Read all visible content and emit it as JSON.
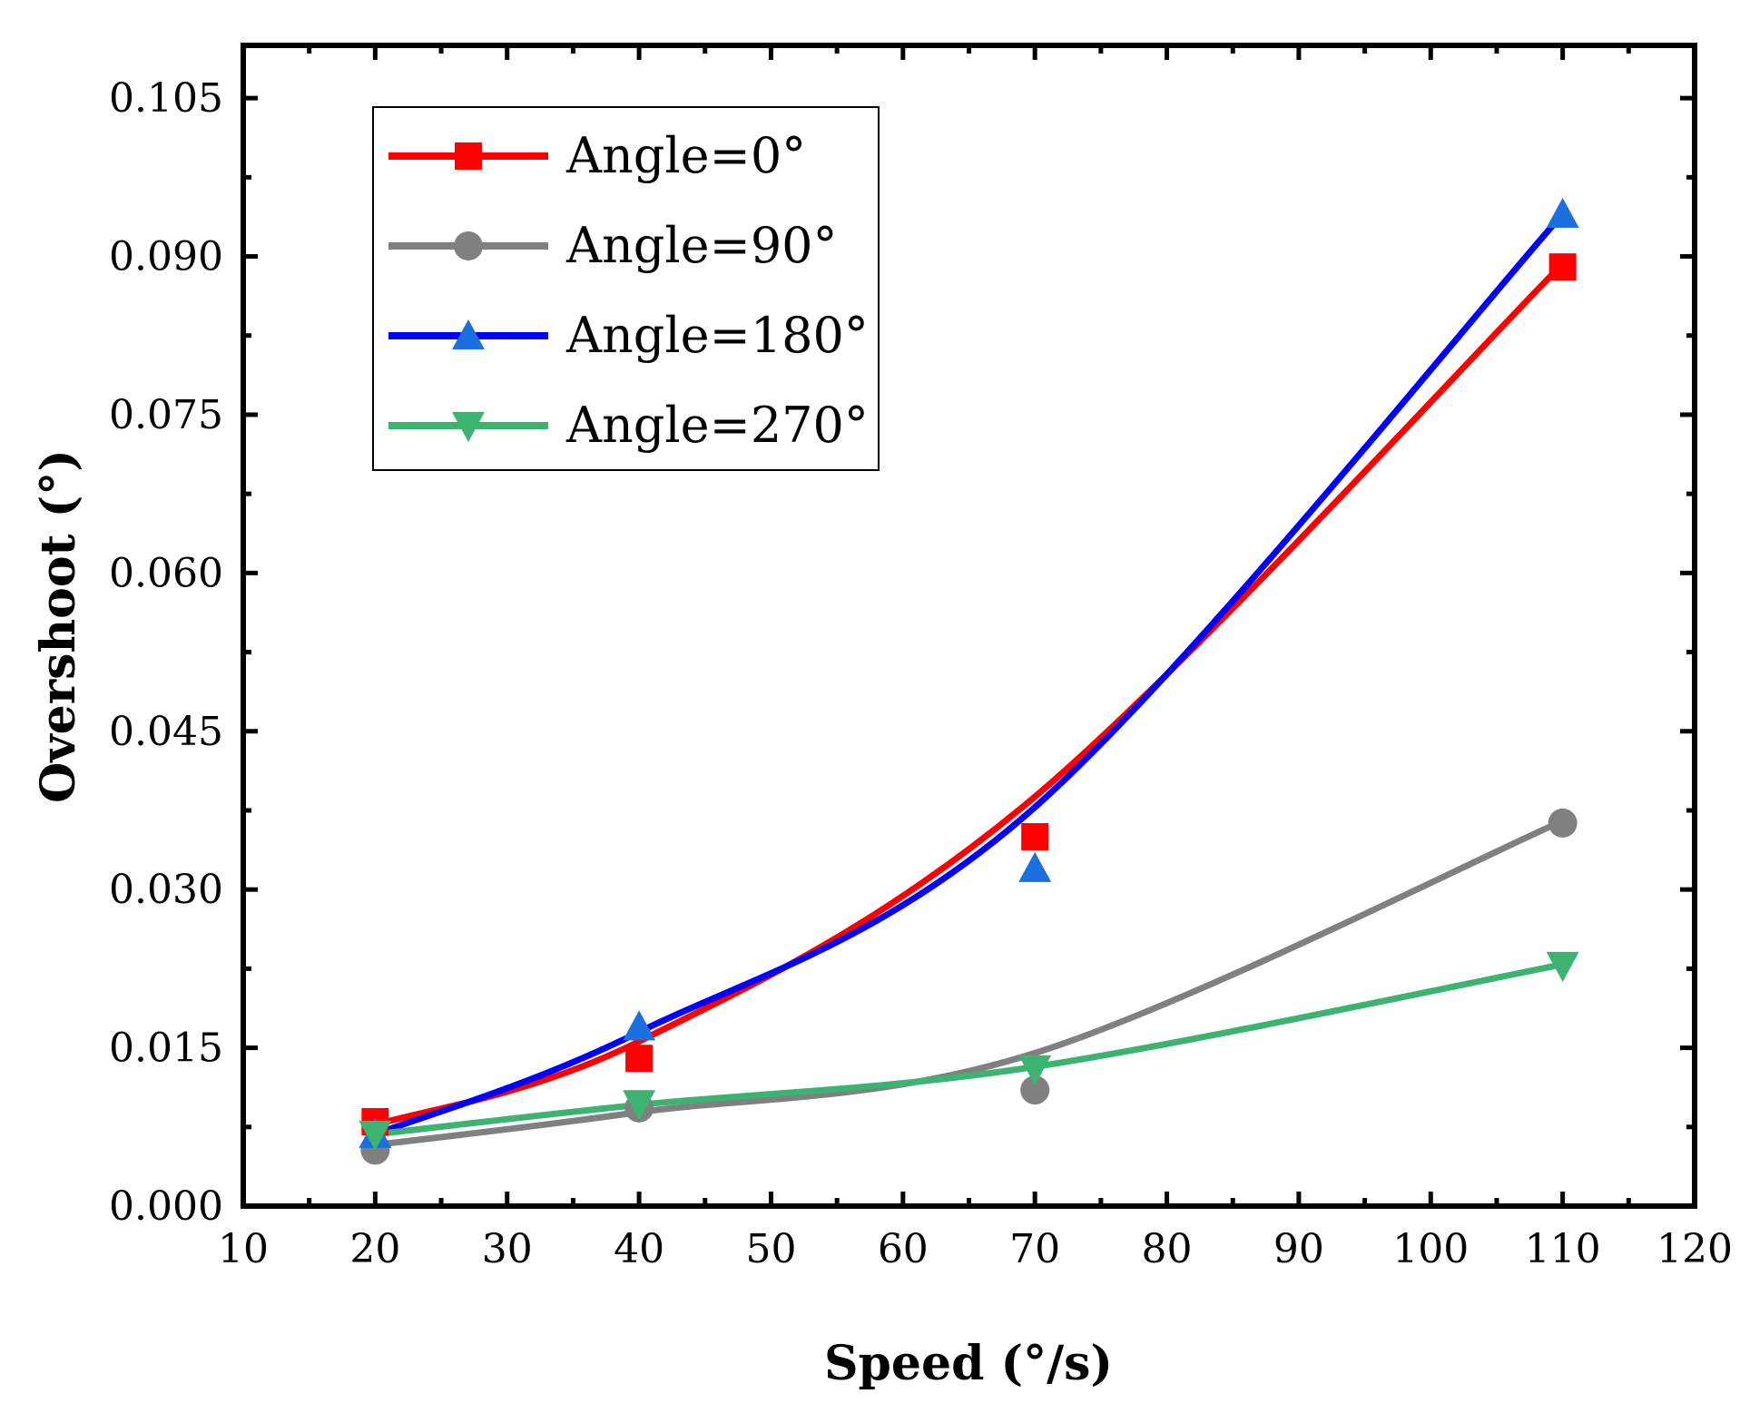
{
  "chart_data": {
    "type": "scatter",
    "title": "",
    "xlabel": "Speed (°/s)",
    "ylabel": "Overshoot (°)",
    "xlim": [
      10,
      120
    ],
    "ylim": [
      0,
      0.11
    ],
    "x_ticks": [
      10,
      20,
      30,
      40,
      50,
      60,
      70,
      80,
      90,
      100,
      110,
      120
    ],
    "x_tick_labels": [
      "10",
      "20",
      "30",
      "40",
      "50",
      "60",
      "70",
      "80",
      "90",
      "100",
      "110",
      "120"
    ],
    "y_ticks": [
      0,
      0.015,
      0.03,
      0.045,
      0.06,
      0.075,
      0.09,
      0.105
    ],
    "y_tick_labels": [
      "0.000",
      "0.015",
      "0.030",
      "0.045",
      "0.060",
      "0.075",
      "0.090",
      "0.105"
    ],
    "legend_position": "top-left",
    "grid": false,
    "x": [
      20,
      40,
      70,
      110
    ],
    "series": [
      {
        "name": "Angle=0°",
        "color": "#ff0000",
        "marker_color": "#ff0000",
        "marker": "square",
        "values": [
          0.008,
          0.014,
          0.035,
          0.089
        ],
        "fit_x": [
          20,
          40,
          70,
          110
        ],
        "fit_y": [
          0.0077,
          0.0156,
          0.0388,
          0.0893
        ]
      },
      {
        "name": "Angle=90°",
        "color": "#808080",
        "marker_color": "#808080",
        "marker": "circle",
        "values": [
          0.0053,
          0.0093,
          0.011,
          0.0363
        ],
        "fit_x": [
          20,
          40,
          70,
          110
        ],
        "fit_y": [
          0.0058,
          0.0089,
          0.0145,
          0.0365
        ]
      },
      {
        "name": "Angle=180°",
        "color": "#0000ff",
        "marker_color": "#1c6fe0",
        "marker": "triangle-up",
        "values": [
          0.0068,
          0.017,
          0.032,
          0.094
        ],
        "fit_x": [
          20,
          40,
          70,
          110
        ],
        "fit_y": [
          0.0068,
          0.0165,
          0.0378,
          0.094
        ]
      },
      {
        "name": "Angle=270°",
        "color": "#3cb371",
        "marker_color": "#3cb371",
        "marker": "triangle-down",
        "values": [
          0.0068,
          0.0097,
          0.013,
          0.0228
        ],
        "fit_x": [
          20,
          40,
          70,
          110
        ],
        "fit_y": [
          0.0068,
          0.0096,
          0.0132,
          0.0229
        ]
      }
    ]
  }
}
